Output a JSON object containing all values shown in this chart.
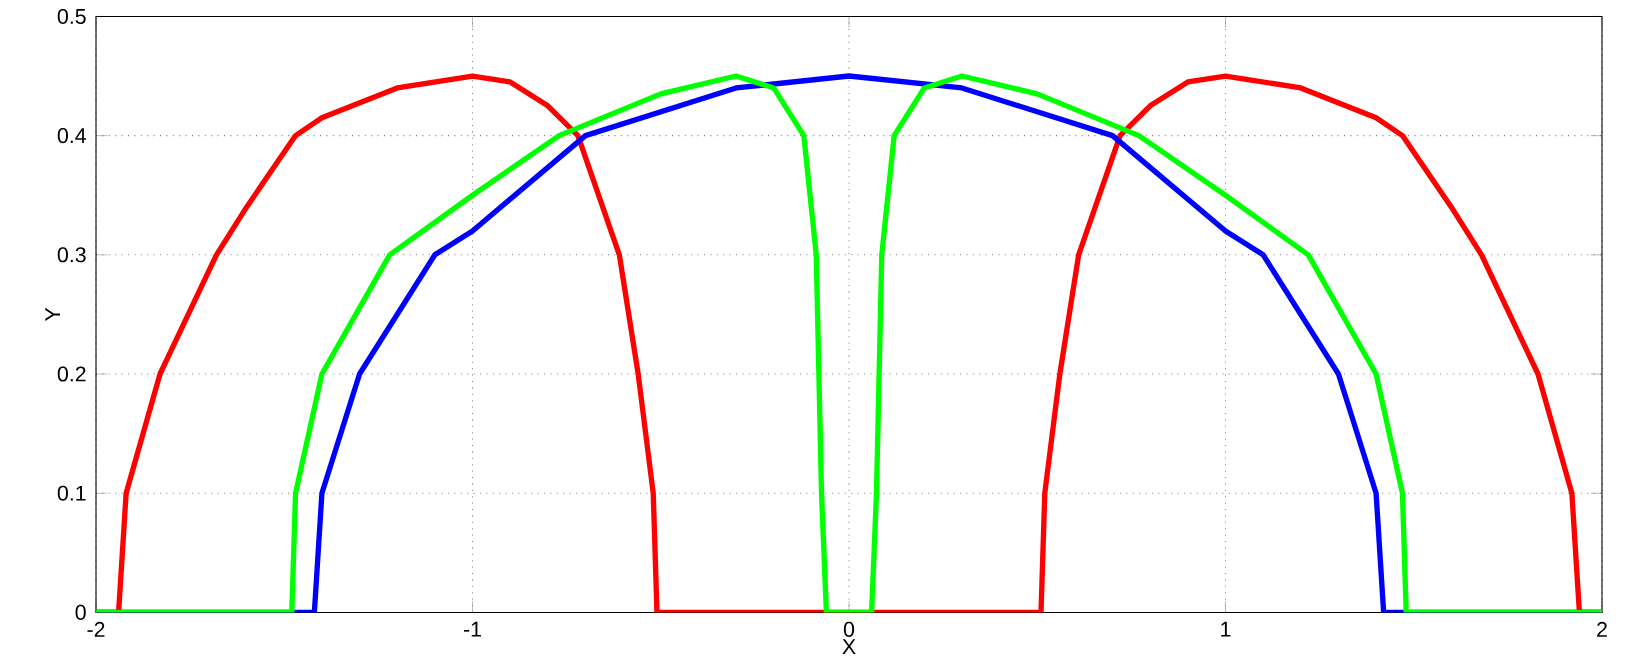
{
  "chart_data": {
    "type": "line",
    "xlabel": "X",
    "ylabel": "Y",
    "xlim": [
      -2,
      2
    ],
    "ylim": [
      0,
      0.5
    ],
    "xticks": [
      -2,
      -1,
      0,
      1,
      2
    ],
    "yticks": [
      0,
      0.1,
      0.2,
      0.3,
      0.4,
      0.5
    ],
    "grid": true,
    "line_style": "solid",
    "series": [
      {
        "color": "#ff0000",
        "x": [
          -2,
          -1.94,
          -1.92,
          -1.83,
          -1.8,
          -1.68,
          -1.6,
          -1.47,
          -1.4,
          -1.2,
          -1,
          -0.9,
          -0.8,
          -0.72,
          -0.61,
          -0.56,
          -0.52,
          -0.51,
          0,
          0.51,
          0.52,
          0.56,
          0.61,
          0.72,
          0.8,
          0.9,
          1,
          1.2,
          1.4,
          1.47,
          1.6,
          1.68,
          1.8,
          1.83,
          1.92,
          1.94,
          2
        ],
        "values": [
          0,
          0,
          0.1,
          0.2,
          0.22,
          0.3,
          0.34,
          0.4,
          0.415,
          0.44,
          0.45,
          0.445,
          0.425,
          0.4,
          0.3,
          0.2,
          0.1,
          0,
          0,
          0,
          0.1,
          0.2,
          0.3,
          0.4,
          0.425,
          0.445,
          0.45,
          0.44,
          0.415,
          0.4,
          0.34,
          0.3,
          0.22,
          0.2,
          0.1,
          0,
          0
        ]
      },
      {
        "color": "#0000ff",
        "x": [
          -2,
          -1.42,
          -1.4,
          -1.3,
          -1.1,
          -1,
          -0.7,
          -0.5,
          -0.3,
          0,
          0.3,
          0.5,
          0.7,
          1,
          1.1,
          1.3,
          1.4,
          1.42,
          2
        ],
        "values": [
          0,
          0,
          0.1,
          0.2,
          0.3,
          0.32,
          0.4,
          0.42,
          0.44,
          0.45,
          0.44,
          0.42,
          0.4,
          0.32,
          0.3,
          0.2,
          0.1,
          0,
          0
        ]
      },
      {
        "color": "#00ff00",
        "x": [
          -2,
          -1.48,
          -1.47,
          -1.4,
          -1.22,
          -1,
          -0.77,
          -0.5,
          -0.3,
          -0.2,
          -0.12,
          -0.087,
          -0.073,
          -0.06,
          0.06,
          0.073,
          0.087,
          0.12,
          0.2,
          0.3,
          0.5,
          0.77,
          1,
          1.22,
          1.4,
          1.47,
          1.48,
          2
        ],
        "values": [
          0,
          0,
          0.1,
          0.2,
          0.3,
          0.35,
          0.4,
          0.435,
          0.45,
          0.44,
          0.4,
          0.3,
          0.1,
          0,
          0,
          0.1,
          0.3,
          0.4,
          0.44,
          0.45,
          0.435,
          0.4,
          0.35,
          0.3,
          0.2,
          0.1,
          0,
          0
        ]
      }
    ]
  }
}
